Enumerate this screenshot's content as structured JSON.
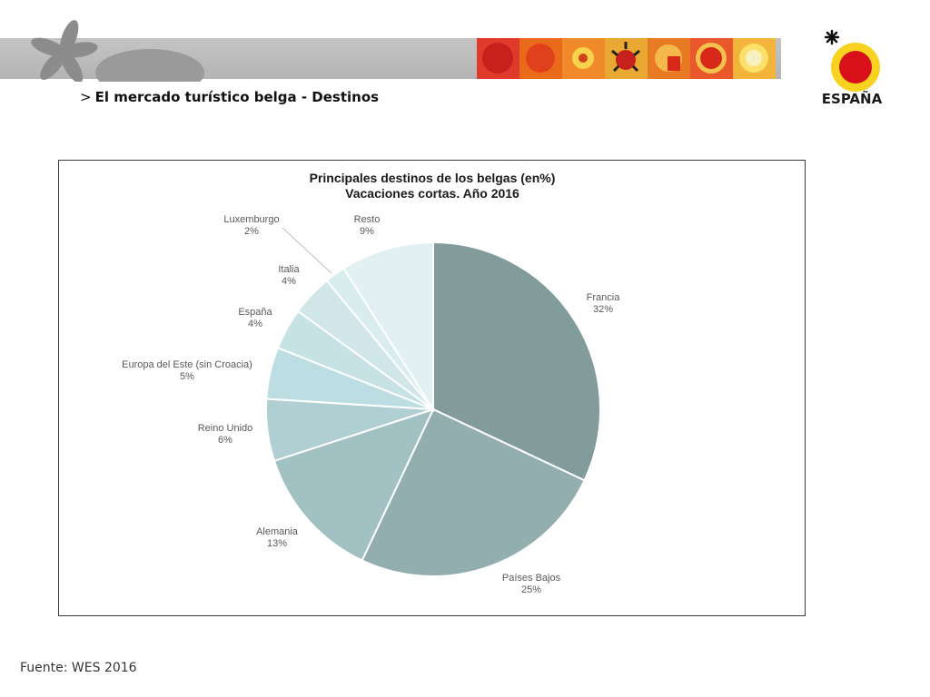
{
  "header": {
    "title_prefix": ">",
    "title": "El mercado turístico belga - Destinos",
    "logo_text": "ESPAÑA",
    "tile_colors": [
      "#e03a2a",
      "#ea6a1c",
      "#f08a2a",
      "#e8a832",
      "#e97a24",
      "#e8582a",
      "#f2b43a"
    ]
  },
  "footer": {
    "source": "Fuente: WES 2016"
  },
  "chart_data": {
    "type": "pie",
    "title": "Principales destinos de los belgas (en%)",
    "subtitle": "Vacaciones cortas. Año 2016",
    "categories": [
      "Francia",
      "Países Bajos",
      "Alemania",
      "Reino Unido",
      "Europa del Este (sin Croacia)",
      "España",
      "Italia",
      "Luxemburgo",
      "Resto"
    ],
    "values": [
      32,
      25,
      13,
      6,
      5,
      4,
      4,
      2,
      9
    ],
    "value_labels": [
      "32%",
      "25%",
      "13%",
      "6%",
      "5%",
      "4%",
      "4%",
      "2%",
      "9%"
    ],
    "colors": [
      "#829b9b",
      "#93aeae",
      "#a2c1c2",
      "#afcfd2",
      "#bcdee2",
      "#c6e2e5",
      "#d0e6e8",
      "#d9ecee",
      "#e3f0f1"
    ],
    "legend": "none"
  }
}
